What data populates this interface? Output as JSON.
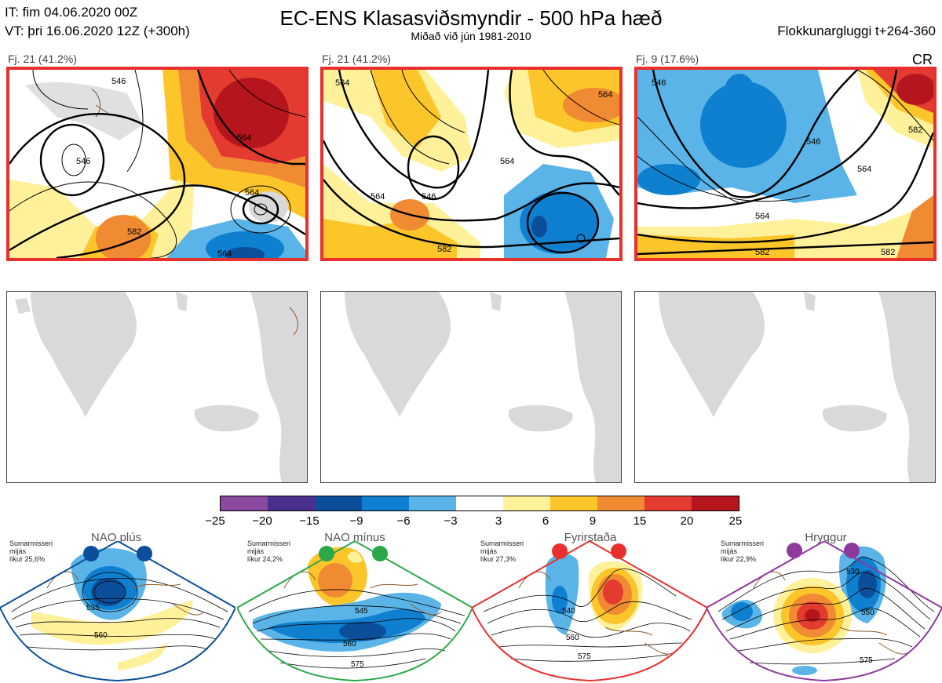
{
  "header": {
    "it_line": "IT: fim 04.06.2020 00Z",
    "vt_line": "VT: þri 16.06.2020 12Z  (+300h)",
    "title": "EC-ENS Klasasviðsmyndir - 500 hPa hæð",
    "subtitle": "Miðað við jún 1981-2010",
    "window": "Flokkunargluggi t+264-360",
    "cr": "CR"
  },
  "clusters": [
    {
      "label": "Fj. 21 (41.2%)",
      "contour_labels": [
        "546",
        "564",
        "582",
        "564",
        "546",
        "564"
      ]
    },
    {
      "label": "Fj. 21 (41.2%)",
      "contour_labels": [
        "564",
        "546",
        "564",
        "582",
        "564",
        "564"
      ]
    },
    {
      "label": "Fj. 9 (17.6%)",
      "contour_labels": [
        "546",
        "546",
        "564",
        "582",
        "564",
        "582",
        "582"
      ]
    }
  ],
  "colorbar": {
    "ticks": [
      "−25",
      "−20",
      "−15",
      "−9",
      "−6",
      "−3",
      "3",
      "6",
      "9",
      "15",
      "20",
      "25"
    ],
    "colors": [
      "#8b4a9f",
      "#4b2f8f",
      "#0b4f9a",
      "#0f7fcf",
      "#5ab4e8",
      "#ffffff",
      "#fff19a",
      "#fcc52a",
      "#f08a33",
      "#e33b2f",
      "#b5151c"
    ]
  },
  "regimes": [
    {
      "name": "NAO plús",
      "info": [
        "Sumarmisseri",
        "mijás",
        "líkur 25,6%"
      ],
      "color": "#0b4f9a",
      "contour_labels": [
        "535",
        "560"
      ]
    },
    {
      "name": "NAO mínus",
      "info": [
        "Sumarmisseri",
        "mijás",
        "líkur 24,2%"
      ],
      "color": "#2aa84a",
      "contour_labels": [
        "545",
        "560",
        "575"
      ]
    },
    {
      "name": "Fyrirstaða",
      "info": [
        "Sumarmisseri",
        "mijás",
        "líkur 27,3%"
      ],
      "color": "#e8302e",
      "contour_labels": [
        "540",
        "560",
        "575"
      ]
    },
    {
      "name": "Hryggur",
      "info": [
        "Sumarmisseri",
        "mijás",
        "líkur 22,9%"
      ],
      "color": "#8e3a9c",
      "contour_labels": [
        "530",
        "550",
        "575"
      ]
    }
  ]
}
